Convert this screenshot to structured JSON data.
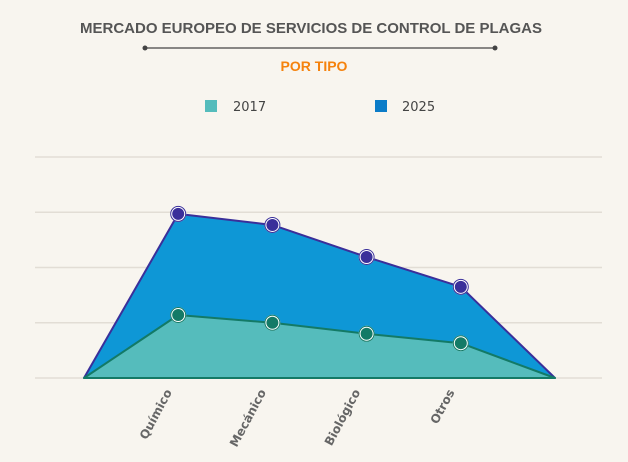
{
  "chart_data": {
    "type": "area",
    "title": "MERCADO EUROPEO DE SERVICIOS DE CONTROL DE PLAGAS",
    "subtitle": "POR TIPO",
    "categories": [
      "",
      "Químico",
      "Mecánico",
      "Biológico",
      "Otros",
      ""
    ],
    "series": [
      {
        "name": "2025",
        "values": [
          0,
          2.97,
          2.77,
          2.19,
          1.65,
          0
        ],
        "fill": "#0e97d6",
        "line": "#3a2f9a"
      },
      {
        "name": "2017",
        "values": [
          0,
          1.14,
          1.0,
          0.8,
          0.63,
          0
        ],
        "fill": "#55bcbc",
        "line": "#137a66"
      }
    ],
    "xlabel": "",
    "ylabel": "",
    "ylim": [
      0,
      4
    ],
    "y_tick_labels_shown": false,
    "grid": true,
    "legend_position": "top",
    "colors": {
      "title": "#555555",
      "subtitle": "#f5820d",
      "grid": "#e2ddd5"
    }
  }
}
